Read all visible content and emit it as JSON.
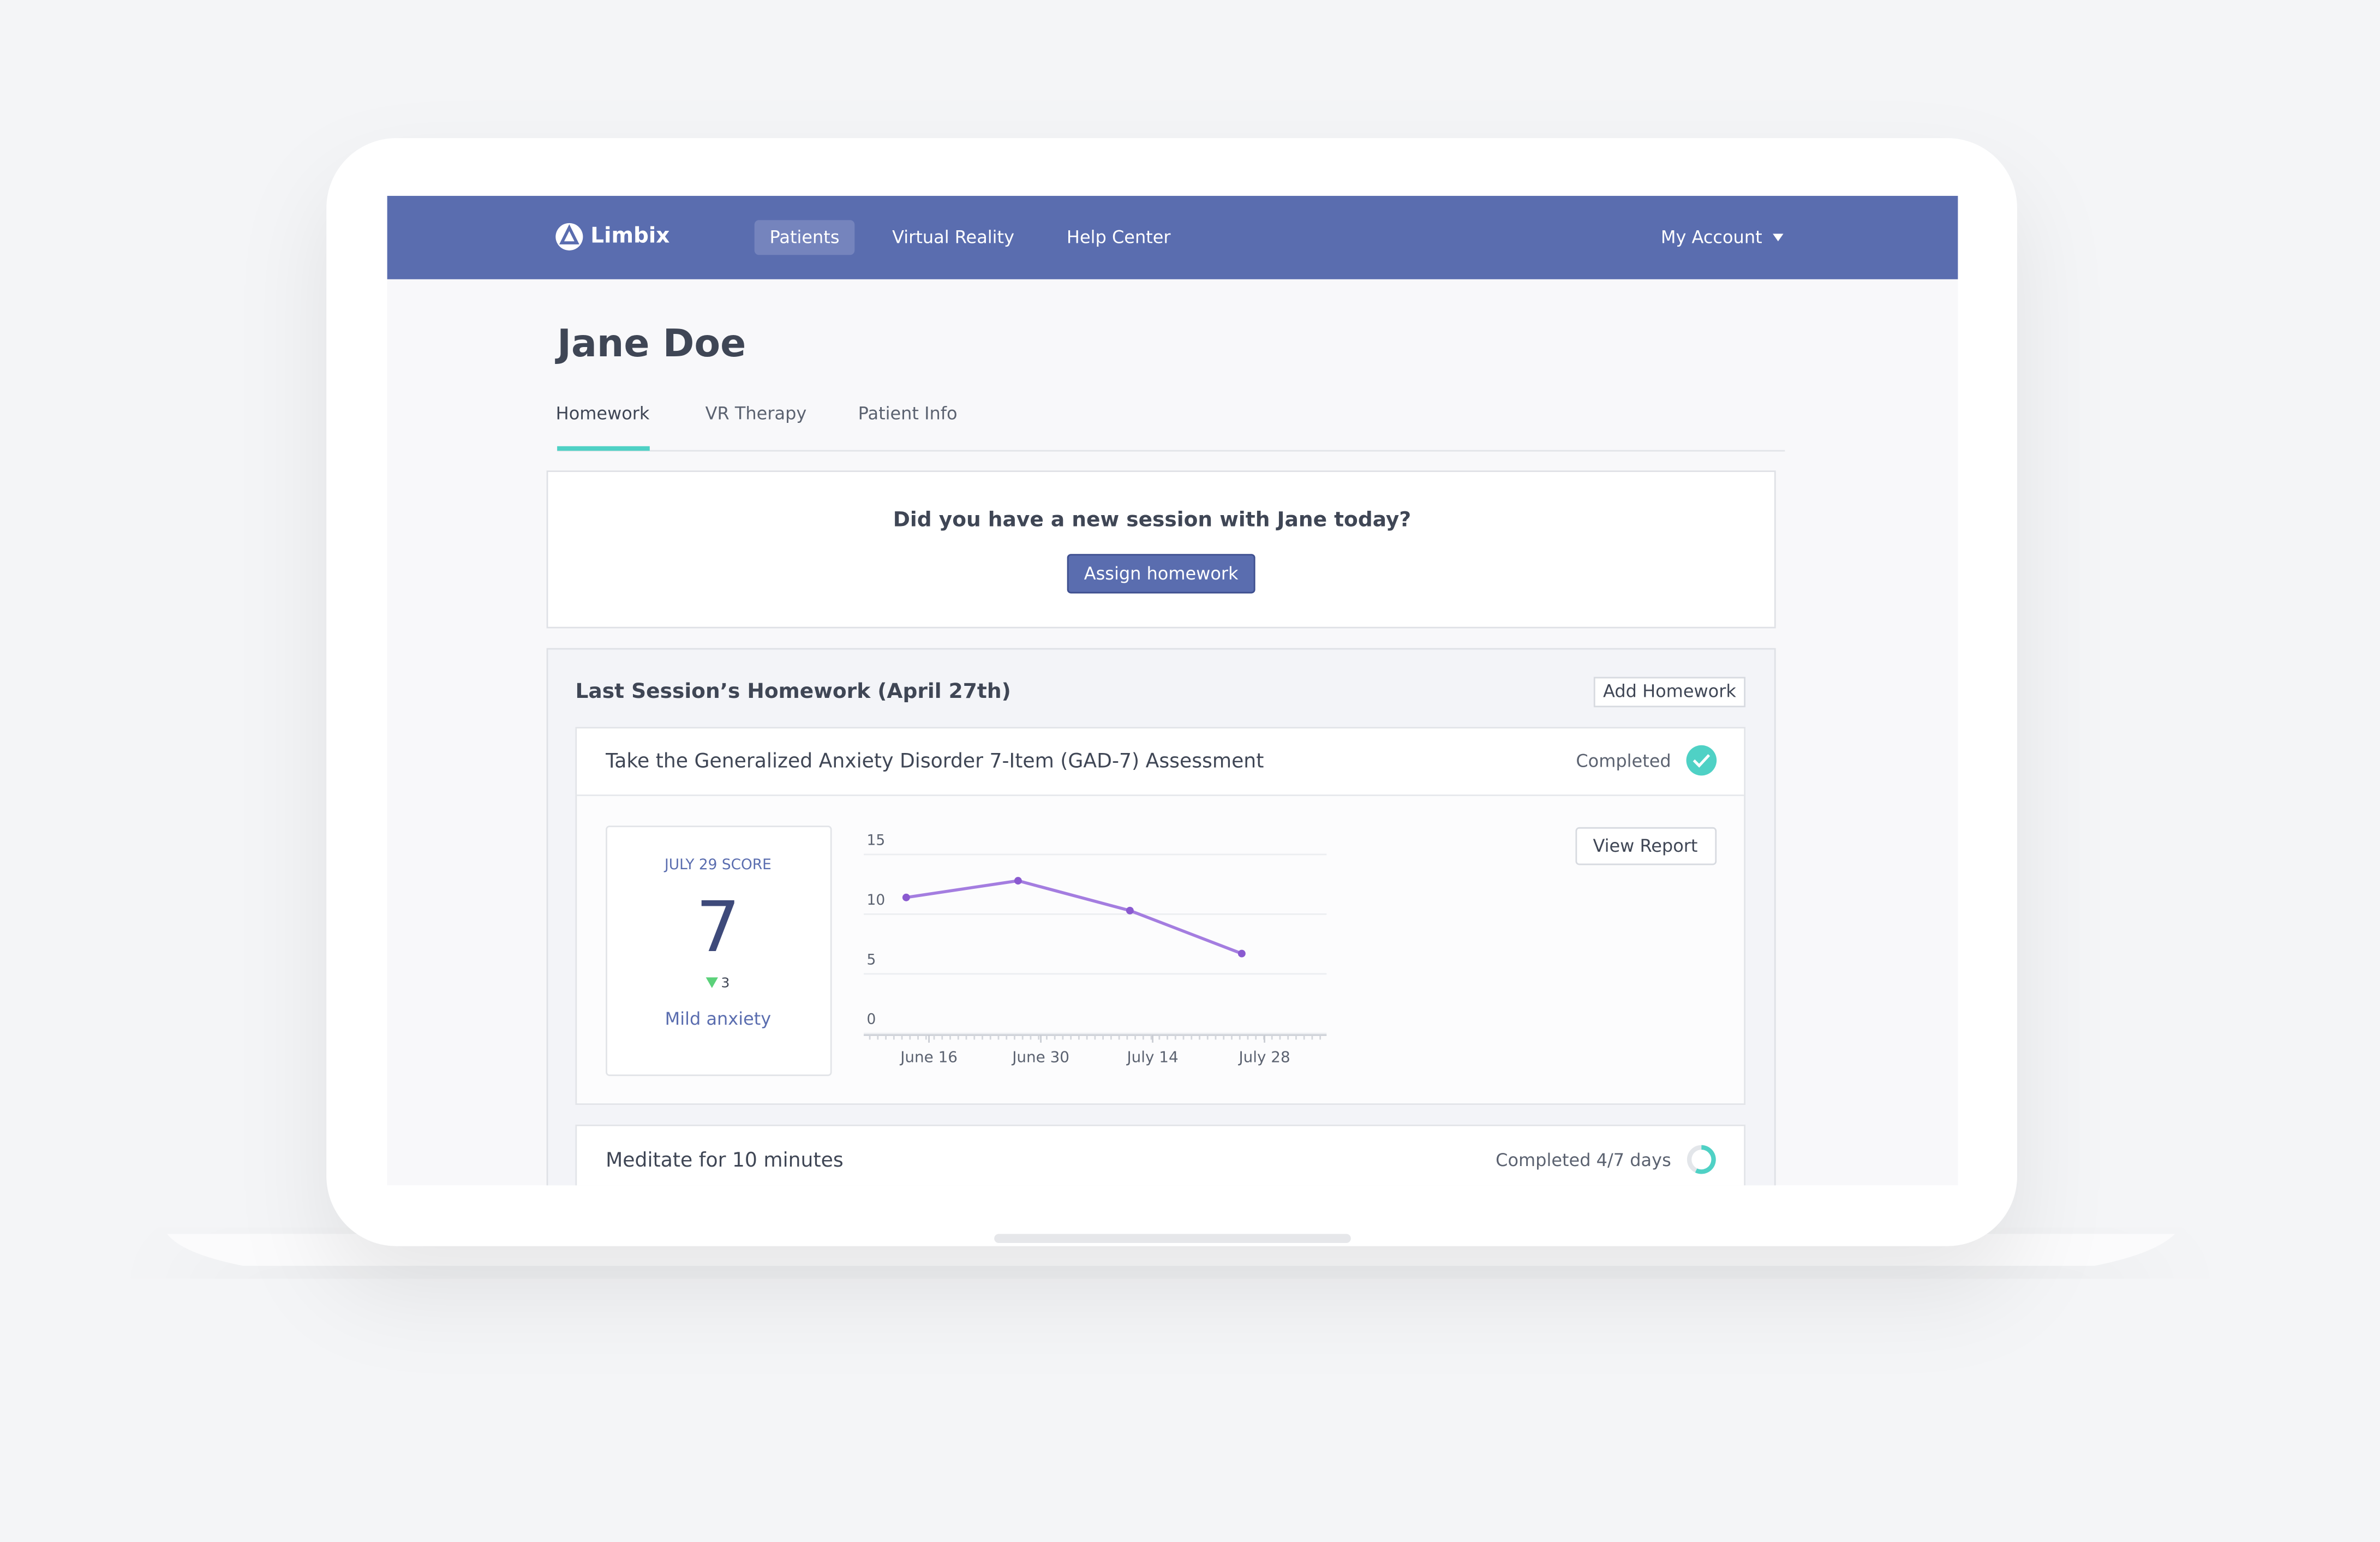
{
  "nav": {
    "logo": "Limbix",
    "links": [
      "Patients",
      "Virtual Reality",
      "Help Center"
    ],
    "account": "My Account"
  },
  "patient": {
    "name": "Jane Doe",
    "tabs": [
      "Homework",
      "VR Therapy",
      "Patient Info"
    ]
  },
  "session_prompt": {
    "question": "Did you have a new session with Jane today?",
    "button": "Assign homework"
  },
  "homework": {
    "title": "Last Session’s Homework (April 27th)",
    "add_button": "Add Homework",
    "items": [
      {
        "title": "Take the Generalized Anxiety Disorder 7-Item (GAD-7) Assessment",
        "status": "Completed"
      },
      {
        "title": "Meditate for 10 minutes",
        "status": "Completed 4/7 days"
      }
    ]
  },
  "score": {
    "label": "JULY 29 SCORE",
    "value": 7,
    "change": 3,
    "severity": "Mild anxiety"
  },
  "view_report": "View Report",
  "chart_data": {
    "type": "line",
    "x": [
      "June 16",
      "June 30",
      "July 14",
      "July 28"
    ],
    "values": [
      11.4,
      12.8,
      10.3,
      6.7
    ],
    "color": "#a47de0",
    "ylim": [
      0,
      15
    ],
    "yticks": [
      0,
      5,
      10,
      15
    ],
    "grid": true
  }
}
